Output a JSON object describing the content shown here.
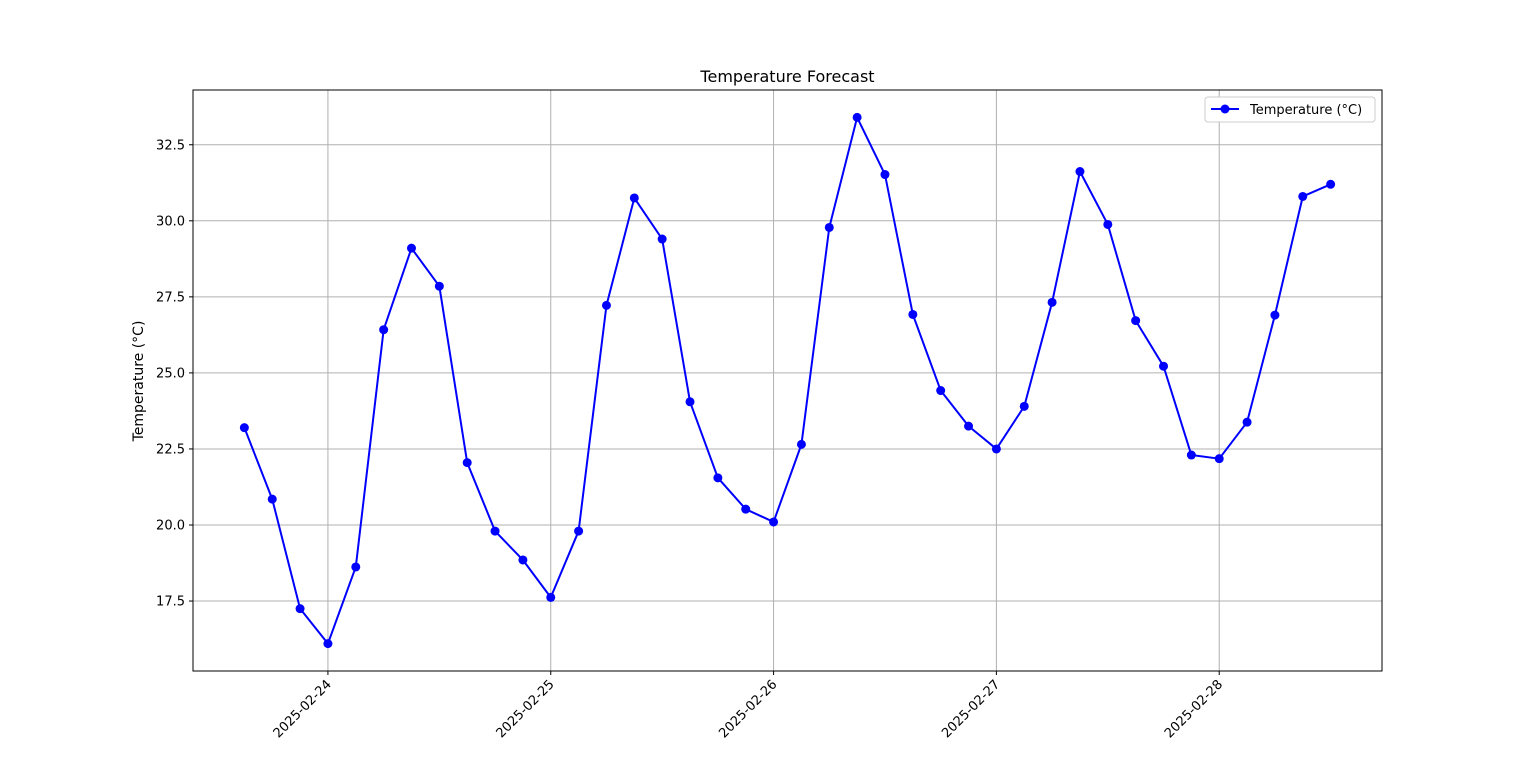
{
  "chart_data": {
    "type": "line",
    "title": "Temperature Forecast",
    "xlabel": "",
    "ylabel": "Temperature (°C)",
    "grid": true,
    "legend_position": "top-right",
    "x_unit": "datetime",
    "x": [
      "2025-02-23 15:00",
      "2025-02-23 18:00",
      "2025-02-23 21:00",
      "2025-02-24 00:00",
      "2025-02-24 03:00",
      "2025-02-24 06:00",
      "2025-02-24 09:00",
      "2025-02-24 12:00",
      "2025-02-24 15:00",
      "2025-02-24 18:00",
      "2025-02-24 21:00",
      "2025-02-25 00:00",
      "2025-02-25 03:00",
      "2025-02-25 06:00",
      "2025-02-25 09:00",
      "2025-02-25 12:00",
      "2025-02-25 15:00",
      "2025-02-25 18:00",
      "2025-02-25 21:00",
      "2025-02-26 00:00",
      "2025-02-26 03:00",
      "2025-02-26 06:00",
      "2025-02-26 09:00",
      "2025-02-26 12:00",
      "2025-02-26 15:00",
      "2025-02-26 18:00",
      "2025-02-26 21:00",
      "2025-02-27 00:00",
      "2025-02-27 03:00",
      "2025-02-27 06:00",
      "2025-02-27 09:00",
      "2025-02-27 12:00",
      "2025-02-27 15:00",
      "2025-02-27 18:00",
      "2025-02-27 21:00",
      "2025-02-28 00:00",
      "2025-02-28 03:00",
      "2025-02-28 06:00",
      "2025-02-28 09:00",
      "2025-02-28 12:00"
    ],
    "series": [
      {
        "name": "Temperature (°C)",
        "color": "#0000ff",
        "marker": "circle",
        "values": [
          23.2,
          20.85,
          17.25,
          16.1,
          18.62,
          26.42,
          29.1,
          27.85,
          22.05,
          19.8,
          18.85,
          17.62,
          19.8,
          27.22,
          30.75,
          29.4,
          24.05,
          21.55,
          20.52,
          20.1,
          22.65,
          29.78,
          33.4,
          31.52,
          26.92,
          24.42,
          23.25,
          22.5,
          23.9,
          27.32,
          31.62,
          29.88,
          26.72,
          25.22,
          22.3,
          22.18,
          23.38,
          26.9,
          30.8,
          31.2
        ]
      }
    ],
    "xticks": [
      "2025-02-24",
      "2025-02-25",
      "2025-02-26",
      "2025-02-27",
      "2025-02-28"
    ],
    "yticks": [
      "17.5",
      "20.0",
      "22.5",
      "25.0",
      "27.5",
      "30.0",
      "32.5"
    ],
    "xlim": [
      "2025-02-23 09:28",
      "2025-02-28 17:32"
    ],
    "ylim": [
      15.2,
      34.3
    ]
  }
}
